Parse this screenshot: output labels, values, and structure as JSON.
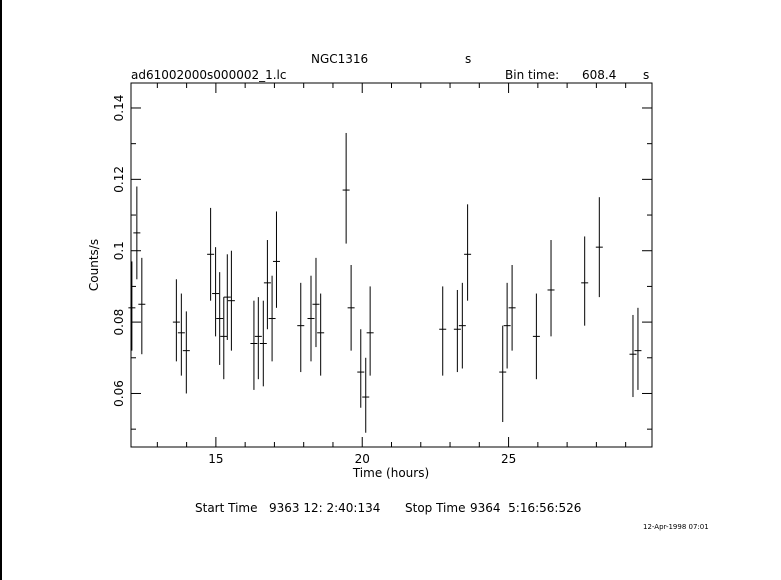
{
  "header": {
    "object_name": "NGC1316",
    "object_unit": "s",
    "filename": "ad61002000s000002_1.lc",
    "bin_label": "Bin time:",
    "bin_value": "608.4",
    "bin_unit": "s"
  },
  "footer": {
    "start_label": "Start Time",
    "start_value": "9363 12: 2:40:134",
    "stop_label": "Stop Time",
    "stop_value": "9364  5:16:56:526",
    "date_stamp": "12-Apr-1998 07:01"
  },
  "chart_data": {
    "type": "scatter",
    "title": "NGC1316",
    "xlabel": "Time (hours)",
    "ylabel": "Counts/s",
    "xlim": [
      12.1,
      29.9
    ],
    "ylim": [
      0.045,
      0.147
    ],
    "xticks": [
      15,
      20,
      25
    ],
    "xtick_labels": [
      "15",
      "20",
      "25"
    ],
    "yticks": [
      0.06,
      0.08,
      0.1,
      0.12,
      0.14
    ],
    "ytick_labels": [
      "0.06",
      "0.08",
      "0.1",
      "0.12",
      "0.14"
    ],
    "grid": false,
    "error_bars": true,
    "points": [
      {
        "x": 12.13,
        "y": 0.084,
        "lo": 0.072,
        "hi": 0.097
      },
      {
        "x": 12.3,
        "y": 0.105,
        "lo": 0.092,
        "hi": 0.118
      },
      {
        "x": 12.47,
        "y": 0.085,
        "lo": 0.071,
        "hi": 0.098
      },
      {
        "x": 13.65,
        "y": 0.08,
        "lo": 0.069,
        "hi": 0.092
      },
      {
        "x": 13.82,
        "y": 0.077,
        "lo": 0.065,
        "hi": 0.088
      },
      {
        "x": 13.99,
        "y": 0.072,
        "lo": 0.06,
        "hi": 0.083
      },
      {
        "x": 14.82,
        "y": 0.099,
        "lo": 0.086,
        "hi": 0.112
      },
      {
        "x": 14.99,
        "y": 0.088,
        "lo": 0.076,
        "hi": 0.101
      },
      {
        "x": 15.13,
        "y": 0.081,
        "lo": 0.068,
        "hi": 0.094
      },
      {
        "x": 15.27,
        "y": 0.076,
        "lo": 0.064,
        "hi": 0.087
      },
      {
        "x": 15.39,
        "y": 0.087,
        "lo": 0.075,
        "hi": 0.099
      },
      {
        "x": 15.53,
        "y": 0.086,
        "lo": 0.072,
        "hi": 0.1
      },
      {
        "x": 16.3,
        "y": 0.074,
        "lo": 0.061,
        "hi": 0.086
      },
      {
        "x": 16.45,
        "y": 0.076,
        "lo": 0.064,
        "hi": 0.087
      },
      {
        "x": 16.62,
        "y": 0.074,
        "lo": 0.062,
        "hi": 0.086
      },
      {
        "x": 16.76,
        "y": 0.091,
        "lo": 0.078,
        "hi": 0.103
      },
      {
        "x": 16.92,
        "y": 0.081,
        "lo": 0.069,
        "hi": 0.093
      },
      {
        "x": 17.07,
        "y": 0.097,
        "lo": 0.084,
        "hi": 0.111
      },
      {
        "x": 17.9,
        "y": 0.079,
        "lo": 0.066,
        "hi": 0.091
      },
      {
        "x": 18.25,
        "y": 0.081,
        "lo": 0.069,
        "hi": 0.093
      },
      {
        "x": 18.42,
        "y": 0.085,
        "lo": 0.073,
        "hi": 0.098
      },
      {
        "x": 18.58,
        "y": 0.077,
        "lo": 0.065,
        "hi": 0.088
      },
      {
        "x": 19.45,
        "y": 0.117,
        "lo": 0.102,
        "hi": 0.133
      },
      {
        "x": 19.62,
        "y": 0.084,
        "lo": 0.072,
        "hi": 0.096
      },
      {
        "x": 19.95,
        "y": 0.066,
        "lo": 0.056,
        "hi": 0.078
      },
      {
        "x": 20.12,
        "y": 0.059,
        "lo": 0.049,
        "hi": 0.07
      },
      {
        "x": 20.27,
        "y": 0.077,
        "lo": 0.065,
        "hi": 0.09
      },
      {
        "x": 22.75,
        "y": 0.078,
        "lo": 0.065,
        "hi": 0.09
      },
      {
        "x": 23.25,
        "y": 0.078,
        "lo": 0.066,
        "hi": 0.089
      },
      {
        "x": 23.42,
        "y": 0.079,
        "lo": 0.067,
        "hi": 0.091
      },
      {
        "x": 23.6,
        "y": 0.099,
        "lo": 0.086,
        "hi": 0.113
      },
      {
        "x": 24.8,
        "y": 0.066,
        "lo": 0.052,
        "hi": 0.079
      },
      {
        "x": 24.95,
        "y": 0.079,
        "lo": 0.067,
        "hi": 0.091
      },
      {
        "x": 25.12,
        "y": 0.084,
        "lo": 0.072,
        "hi": 0.096
      },
      {
        "x": 25.95,
        "y": 0.076,
        "lo": 0.064,
        "hi": 0.088
      },
      {
        "x": 26.45,
        "y": 0.089,
        "lo": 0.076,
        "hi": 0.103
      },
      {
        "x": 27.6,
        "y": 0.091,
        "lo": 0.079,
        "hi": 0.104
      },
      {
        "x": 28.1,
        "y": 0.101,
        "lo": 0.087,
        "hi": 0.115
      },
      {
        "x": 29.25,
        "y": 0.071,
        "lo": 0.059,
        "hi": 0.082
      },
      {
        "x": 29.42,
        "y": 0.072,
        "lo": 0.061,
        "hi": 0.084
      }
    ]
  }
}
